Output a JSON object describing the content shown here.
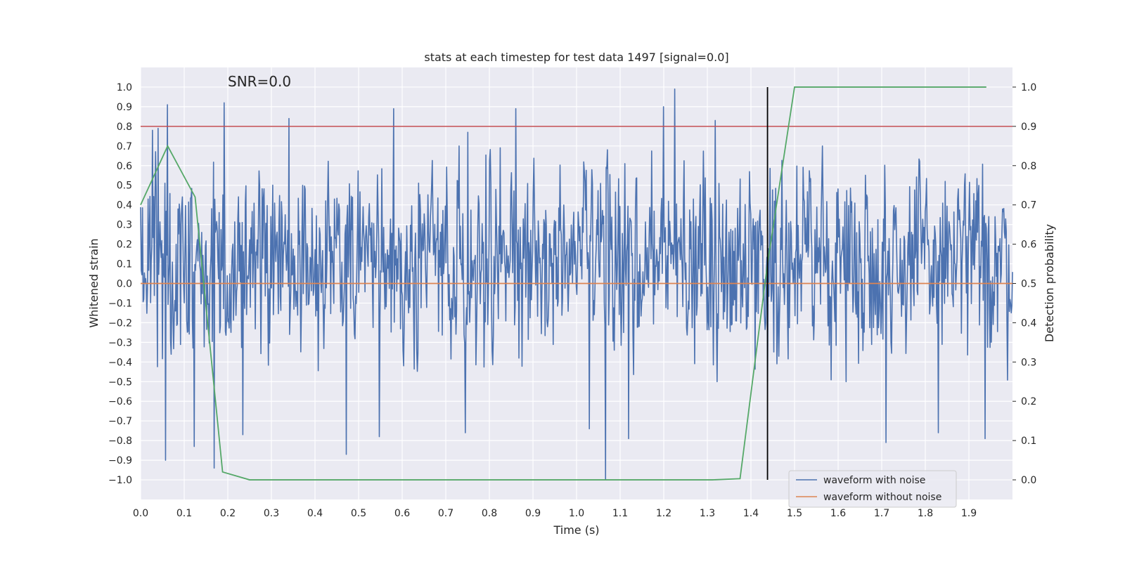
{
  "chart_data": {
    "type": "line",
    "title": "stats at each timestep for test data 1497 [signal=0.0]",
    "xlabel": "Time (s)",
    "ylabel": "Whitened strain",
    "y2label": "Detection probability",
    "annotation": "SNR=0.0",
    "xlim": [
      0.0,
      2.0
    ],
    "ylim": [
      -1.1,
      1.1
    ],
    "y2lim": [
      -0.05,
      1.05
    ],
    "x_ticks": [
      "0.0",
      "0.1",
      "0.2",
      "0.3",
      "0.4",
      "0.5",
      "0.6",
      "0.7",
      "0.8",
      "0.9",
      "1.0",
      "1.1",
      "1.2",
      "1.3",
      "1.4",
      "1.5",
      "1.6",
      "1.7",
      "1.8",
      "1.9"
    ],
    "x_tick_values": [
      0.0,
      0.1,
      0.2,
      0.3,
      0.4,
      0.5,
      0.6,
      0.7,
      0.8,
      0.9,
      1.0,
      1.1,
      1.2,
      1.3,
      1.4,
      1.5,
      1.6,
      1.7,
      1.8,
      1.9
    ],
    "y_ticks": [
      "1.0",
      "0.9",
      "0.8",
      "0.7",
      "0.6",
      "0.5",
      "0.4",
      "0.3",
      "0.2",
      "0.1",
      "0.0",
      "−0.1",
      "−0.2",
      "−0.3",
      "−0.4",
      "−0.5",
      "−0.6",
      "−0.7",
      "−0.8",
      "−0.9",
      "−1.0"
    ],
    "y_tick_values": [
      1.0,
      0.9,
      0.8,
      0.7,
      0.6,
      0.5,
      0.4,
      0.3,
      0.2,
      0.1,
      0.0,
      -0.1,
      -0.2,
      -0.3,
      -0.4,
      -0.5,
      -0.6,
      -0.7,
      -0.8,
      -0.9,
      -1.0
    ],
    "y2_ticks": [
      "1.0",
      "0.9",
      "0.8",
      "0.7",
      "0.6",
      "0.5",
      "0.4",
      "0.3",
      "0.2",
      "0.1",
      "0.0"
    ],
    "y2_tick_values": [
      1.0,
      0.9,
      0.8,
      0.7,
      0.6,
      0.5,
      0.4,
      0.3,
      0.2,
      0.1,
      0.0
    ],
    "series": [
      {
        "name": "waveform with noise",
        "color": "#4c72b0",
        "axis": "left",
        "kind": "noise",
        "x_start": 0.0,
        "x_end": 2.0,
        "n_points": 1400,
        "seed": 1497,
        "typical_range": [
          -0.5,
          0.7
        ],
        "peaks": [
          {
            "x": 0.027,
            "y": 0.78
          },
          {
            "x": 0.04,
            "y": 0.79
          },
          {
            "x": 0.062,
            "y": 0.91
          },
          {
            "x": 0.057,
            "y": -0.9
          },
          {
            "x": 0.123,
            "y": -0.83
          },
          {
            "x": 0.168,
            "y": -0.94
          },
          {
            "x": 0.192,
            "y": 0.92
          },
          {
            "x": 0.235,
            "y": -0.77
          },
          {
            "x": 0.34,
            "y": 0.84
          },
          {
            "x": 0.472,
            "y": -0.87
          },
          {
            "x": 0.58,
            "y": 0.89
          },
          {
            "x": 0.548,
            "y": -0.78
          },
          {
            "x": 0.86,
            "y": 0.89
          },
          {
            "x": 1.066,
            "y": -1.0
          },
          {
            "x": 1.2,
            "y": 0.9
          },
          {
            "x": 1.225,
            "y": 0.99
          },
          {
            "x": 1.318,
            "y": 0.83
          },
          {
            "x": 1.71,
            "y": -0.81
          },
          {
            "x": 1.83,
            "y": -0.76
          },
          {
            "x": 1.937,
            "y": -0.79
          },
          {
            "x": 0.745,
            "y": -0.76
          },
          {
            "x": 1.03,
            "y": -0.74
          },
          {
            "x": 1.12,
            "y": -0.79
          },
          {
            "x": 0.75,
            "y": 0.77
          }
        ]
      },
      {
        "name": "waveform without noise",
        "color": "#dd8452",
        "axis": "left",
        "x": [
          0.0,
          2.0
        ],
        "y": [
          0.0,
          0.0
        ]
      },
      {
        "name": "detection probability",
        "color": "#55a868",
        "axis": "right",
        "x": [
          0.0,
          0.062,
          0.125,
          0.188,
          0.25,
          0.312,
          0.375,
          0.438,
          0.5,
          0.562,
          0.625,
          0.688,
          0.75,
          0.812,
          0.875,
          0.938,
          1.0,
          1.062,
          1.125,
          1.188,
          1.25,
          1.312,
          1.375,
          1.438,
          1.5,
          1.562,
          1.625,
          1.688,
          1.75,
          1.812,
          1.875,
          1.94
        ],
        "y": [
          0.7,
          0.85,
          0.72,
          0.02,
          0.0,
          0.0,
          0.0,
          0.0,
          0.0,
          0.0,
          0.0,
          0.0,
          0.0,
          0.0,
          0.0,
          0.0,
          0.0,
          0.0,
          0.0,
          0.0,
          0.0,
          0.0,
          0.003,
          0.55,
          1.0,
          1.0,
          1.0,
          1.0,
          1.0,
          1.0,
          1.0,
          1.0
        ]
      }
    ],
    "hlines": [
      {
        "name": "threshold",
        "color": "#c44e52",
        "axis": "right",
        "y": 0.9
      }
    ],
    "vlines": [
      {
        "name": "trigger time",
        "color": "#000000",
        "x": 1.438,
        "y2_range": [
          0.0,
          1.0
        ]
      }
    ],
    "legend": {
      "location": "lower-right",
      "entries": [
        {
          "label": "waveform with noise",
          "color": "#4c72b0"
        },
        {
          "label": "waveform without noise",
          "color": "#dd8452"
        }
      ]
    },
    "grid": true,
    "style": {
      "plot_bg": "#eaeaf2",
      "grid_color": "#ffffff"
    }
  }
}
